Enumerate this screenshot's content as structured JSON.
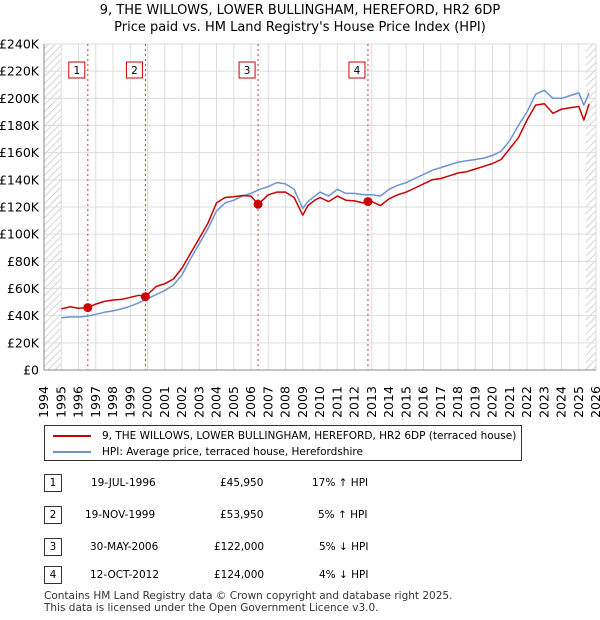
{
  "chart_data": {
    "type": "line",
    "title": "9, THE WILLOWS, LOWER BULLINGHAM, HEREFORD, HR2 6DP",
    "subtitle": "Price paid vs. HM Land Registry's House Price Index (HPI)",
    "xlabel": "",
    "ylabel": "",
    "xlim": [
      1994,
      2026
    ],
    "ylim": [
      0,
      240000
    ],
    "grid": true,
    "x_ticks": [
      "1994",
      "1995",
      "1996",
      "1997",
      "1998",
      "1999",
      "2000",
      "2001",
      "2002",
      "2003",
      "2004",
      "2005",
      "2006",
      "2007",
      "2008",
      "2009",
      "2010",
      "2011",
      "2012",
      "2013",
      "2014",
      "2015",
      "2016",
      "2017",
      "2018",
      "2019",
      "2020",
      "2021",
      "2022",
      "2023",
      "2024",
      "2025",
      "2026"
    ],
    "y_ticks": [
      "£0",
      "£20K",
      "£40K",
      "£60K",
      "£80K",
      "£100K",
      "£120K",
      "£140K",
      "£160K",
      "£180K",
      "£200K",
      "£220K",
      "£240K"
    ],
    "y_tick_values": [
      0,
      20000,
      40000,
      60000,
      80000,
      100000,
      120000,
      140000,
      160000,
      180000,
      200000,
      220000,
      240000
    ],
    "series": [
      {
        "name": "9, THE WILLOWS, LOWER BULLINGHAM, HEREFORD, HR2 6DP (terraced house)",
        "color": "#cc0000",
        "x": [
          1995.0,
          1995.5,
          1996.0,
          1996.54,
          1997.0,
          1997.5,
          1998.0,
          1998.5,
          1999.0,
          1999.5,
          1999.88,
          2000.5,
          2001.0,
          2001.5,
          2002.0,
          2002.5,
          2003.0,
          2003.5,
          2004.0,
          2004.5,
          2005.0,
          2005.5,
          2006.0,
          2006.41,
          2007.0,
          2007.5,
          2008.0,
          2008.5,
          2009.0,
          2009.3,
          2009.7,
          2010.0,
          2010.5,
          2011.0,
          2011.5,
          2012.0,
          2012.5,
          2012.78,
          2013.0,
          2013.5,
          2014.0,
          2014.5,
          2015.0,
          2015.5,
          2016.0,
          2016.5,
          2017.0,
          2017.5,
          2018.0,
          2018.5,
          2019.0,
          2019.5,
          2020.0,
          2020.5,
          2021.0,
          2021.5,
          2022.0,
          2022.5,
          2023.0,
          2023.5,
          2024.0,
          2024.5,
          2025.0,
          2025.3,
          2025.6
        ],
        "y": [
          45000,
          46500,
          45500,
          45950,
          48500,
          50500,
          51500,
          52000,
          53500,
          55000,
          53950,
          61500,
          63500,
          67000,
          75000,
          86000,
          97000,
          108000,
          123000,
          127000,
          127500,
          128500,
          128000,
          122000,
          129000,
          131000,
          131000,
          127000,
          114000,
          121000,
          125000,
          127000,
          124000,
          128000,
          125000,
          124500,
          123000,
          124000,
          124000,
          121000,
          126000,
          129000,
          131000,
          134000,
          137000,
          140000,
          141000,
          143000,
          145000,
          146000,
          148000,
          150000,
          152000,
          155000,
          163000,
          171000,
          184000,
          195000,
          196000,
          189000,
          192000,
          193000,
          194000,
          184000,
          196000
        ]
      },
      {
        "name": "HPI: Average price, terraced house, Herefordshire",
        "color": "#6f93cf",
        "x": [
          1995.0,
          1995.5,
          1996.0,
          1996.5,
          1997.0,
          1997.5,
          1998.0,
          1998.5,
          1999.0,
          1999.5,
          2000.0,
          2000.5,
          2001.0,
          2001.5,
          2002.0,
          2002.5,
          2003.0,
          2003.5,
          2004.0,
          2004.5,
          2005.0,
          2005.5,
          2006.0,
          2006.5,
          2007.0,
          2007.5,
          2008.0,
          2008.5,
          2009.0,
          2009.3,
          2009.7,
          2010.0,
          2010.5,
          2011.0,
          2011.5,
          2012.0,
          2012.5,
          2013.0,
          2013.5,
          2014.0,
          2014.5,
          2015.0,
          2015.5,
          2016.0,
          2016.5,
          2017.0,
          2017.5,
          2018.0,
          2018.5,
          2019.0,
          2019.5,
          2020.0,
          2020.5,
          2021.0,
          2021.5,
          2022.0,
          2022.5,
          2023.0,
          2023.5,
          2024.0,
          2024.5,
          2025.0,
          2025.3,
          2025.6
        ],
        "y": [
          38500,
          39000,
          39000,
          39500,
          41000,
          42500,
          43500,
          45000,
          47000,
          49500,
          52500,
          55500,
          58500,
          62500,
          70000,
          82000,
          93000,
          104000,
          117000,
          123000,
          125000,
          128000,
          130000,
          133000,
          135000,
          138000,
          137000,
          133000,
          119000,
          124000,
          128000,
          131000,
          128000,
          133000,
          130000,
          130000,
          129000,
          129000,
          128000,
          133000,
          136000,
          138000,
          141000,
          144000,
          147000,
          149000,
          151000,
          153000,
          154000,
          155000,
          156000,
          158000,
          161000,
          169000,
          180000,
          190000,
          203000,
          206000,
          200000,
          200000,
          202000,
          204000,
          195000,
          204000
        ]
      }
    ],
    "markers": [
      {
        "label": "1",
        "x": 1996.54,
        "y": 45950
      },
      {
        "label": "2",
        "x": 1999.88,
        "y": 53950
      },
      {
        "label": "3",
        "x": 2006.41,
        "y": 122000
      },
      {
        "label": "4",
        "x": 2012.78,
        "y": 124000
      }
    ]
  },
  "legend": {
    "items": [
      {
        "label": "9, THE WILLOWS, LOWER BULLINGHAM, HEREFORD, HR2 6DP (terraced house)",
        "color": "#cc0000"
      },
      {
        "label": "HPI: Average price, terraced house, Herefordshire",
        "color": "#6f93cf"
      }
    ]
  },
  "transactions": [
    {
      "num": "1",
      "date": "19-JUL-1996",
      "price": "£45,950",
      "hpi": "17% ↑ HPI"
    },
    {
      "num": "2",
      "date": "19-NOV-1999",
      "price": "£53,950",
      "hpi": "5% ↑ HPI"
    },
    {
      "num": "3",
      "date": "30-MAY-2006",
      "price": "£122,000",
      "hpi": "5% ↓ HPI"
    },
    {
      "num": "4",
      "date": "12-OCT-2012",
      "price": "£124,000",
      "hpi": "4% ↓ HPI"
    }
  ],
  "footer": {
    "line1": "Contains HM Land Registry data © Crown copyright and database right 2025.",
    "line2": "This data is licensed under the Open Government Licence v3.0."
  }
}
